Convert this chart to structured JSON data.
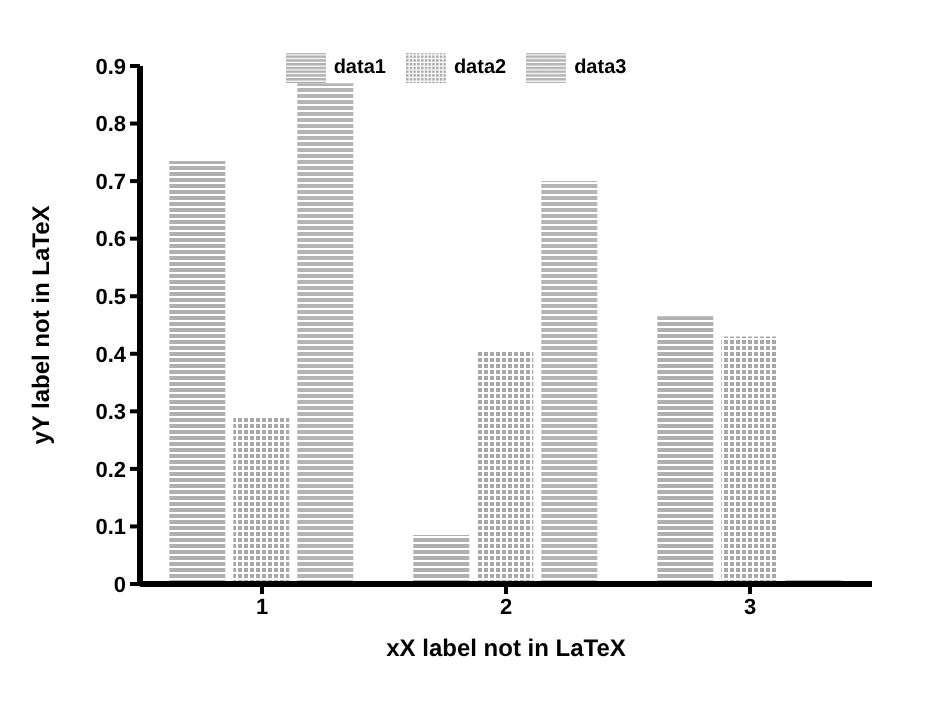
{
  "chart_data": {
    "type": "bar",
    "xlabel": "xX label not in LaTeX",
    "ylabel": "yY label not in LaTeX",
    "categories": [
      "1",
      "2",
      "3"
    ],
    "series": [
      {
        "name": "data1",
        "color": "#b0b0b0",
        "values": [
          0.735,
          0.085,
          0.465
        ]
      },
      {
        "name": "data2",
        "color": "#a8a8a8",
        "values": [
          0.29,
          0.405,
          0.43
        ]
      },
      {
        "name": "data3",
        "color": "#b4b4b4",
        "values": [
          0.87,
          0.7,
          0.01
        ]
      }
    ],
    "ylim": [
      0,
      0.9
    ],
    "yticks": [
      0,
      0.1,
      0.2,
      0.3,
      0.4,
      0.5,
      0.6,
      0.7,
      0.8,
      0.9
    ],
    "grid": false,
    "legend": "top"
  }
}
